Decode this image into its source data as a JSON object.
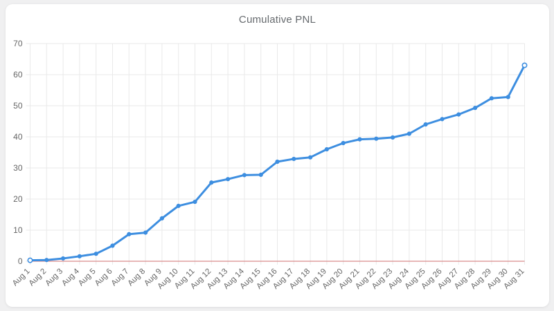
{
  "page": {
    "background_color": "#f0f0f1",
    "card_color": "#ffffff"
  },
  "chart_data": {
    "type": "line",
    "title": "Cumulative PNL",
    "x": [
      "Aug 1",
      "Aug 2",
      "Aug 3",
      "Aug 4",
      "Aug 5",
      "Aug 6",
      "Aug 7",
      "Aug 8",
      "Aug 9",
      "Aug 10",
      "Aug 11",
      "Aug 12",
      "Aug 13",
      "Aug 14",
      "Aug 15",
      "Aug 16",
      "Aug 17",
      "Aug 18",
      "Aug 19",
      "Aug 20",
      "Aug 21",
      "Aug 22",
      "Aug 23",
      "Aug 24",
      "Aug 25",
      "Aug 26",
      "Aug 27",
      "Aug 28",
      "Aug 29",
      "Aug 30",
      "Aug 31"
    ],
    "series": [
      {
        "name": "Cumulative PNL",
        "values": [
          0.3,
          0.4,
          0.9,
          1.6,
          2.4,
          5.0,
          8.7,
          9.2,
          13.8,
          17.8,
          19.1,
          25.3,
          26.4,
          27.7,
          27.8,
          32.0,
          32.9,
          33.4,
          36.0,
          38.0,
          39.2,
          39.4,
          39.8,
          41.0,
          44.0,
          45.7,
          47.2,
          49.3,
          52.4,
          52.8,
          63.0
        ]
      }
    ],
    "ylim": [
      0,
      70
    ],
    "yticks": [
      0,
      10,
      20,
      30,
      40,
      50,
      60,
      70
    ],
    "xlabel": "",
    "ylabel": "",
    "grid": true,
    "legend": "none",
    "x_tick_rotation": -45,
    "colors": {
      "line": "#3d8ee0",
      "zero_line": "#d98a8a",
      "grid": "#e9e9e9",
      "tick_text": "#666666",
      "title_text": "#666a6e"
    }
  }
}
